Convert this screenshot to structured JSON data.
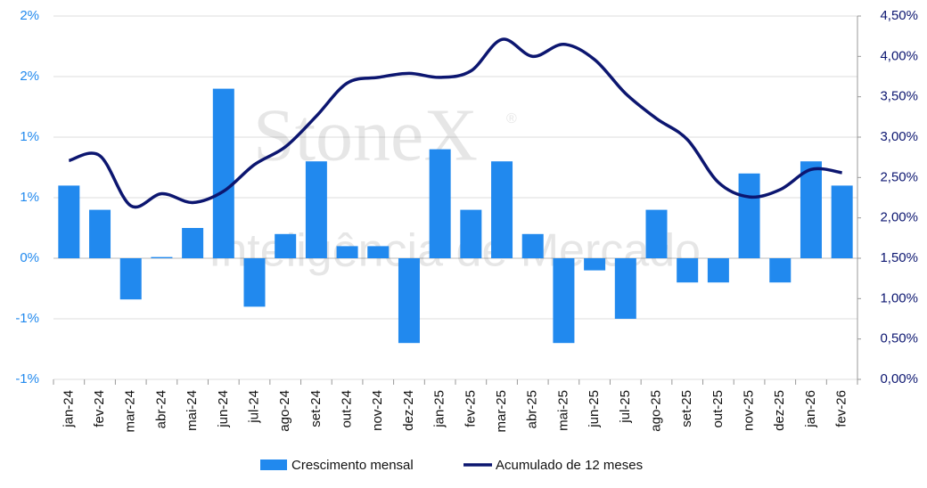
{
  "chart_data": {
    "type": "bar_line",
    "watermark": {
      "brand": "StoneX",
      "mark": "®",
      "subtitle": "Inteligência de Mercado"
    },
    "categories": [
      "jan-24",
      "fev-24",
      "mar-24",
      "abr-24",
      "mai-24",
      "jun-24",
      "jul-24",
      "ago-24",
      "set-24",
      "out-24",
      "nov-24",
      "dez-24",
      "jan-25",
      "fev-25",
      "mar-25",
      "abr-25",
      "mai-25",
      "jun-25",
      "jul-25",
      "ago-25",
      "set-25",
      "out-25",
      "nov-25",
      "dez-25",
      "jan-26",
      "fev-26"
    ],
    "series": [
      {
        "name": "Crescimento mensal",
        "color": "#2189ee",
        "type": "bar",
        "axis": "y",
        "values": [
          0.6,
          0.4,
          -0.34,
          0.01,
          0.25,
          1.4,
          -0.4,
          0.2,
          0.8,
          0.1,
          0.1,
          -0.7,
          0.9,
          0.4,
          0.8,
          0.2,
          -0.7,
          -0.1,
          -0.5,
          0.4,
          -0.2,
          -0.2,
          0.7,
          -0.2,
          0.8,
          0.6
        ]
      },
      {
        "name": "Acumulado de 12 meses",
        "color": "#0c1670",
        "type": "line",
        "axis": "y2",
        "values": [
          2.71,
          2.77,
          2.15,
          2.3,
          2.19,
          2.33,
          2.66,
          2.88,
          3.26,
          3.67,
          3.74,
          3.79,
          3.74,
          3.82,
          4.21,
          4.0,
          4.15,
          3.96,
          3.54,
          3.23,
          2.97,
          2.44,
          2.26,
          2.35,
          2.6,
          2.56
        ]
      }
    ],
    "ylim": [
      -1.0,
      2.0
    ],
    "yticks": [
      {
        "value": -1.0,
        "label": "-1%"
      },
      {
        "value": -0.5,
        "label": "-1%"
      },
      {
        "value": 0,
        "label": "0%"
      },
      {
        "value": 0.5,
        "label": "1%"
      },
      {
        "value": 1.0,
        "label": "1%"
      },
      {
        "value": 1.5,
        "label": "2%"
      },
      {
        "value": 2.0,
        "label": "2%"
      }
    ],
    "y2lim": [
      0,
      4.5
    ],
    "y2ticks": [
      {
        "value": 0,
        "label": "0,00%"
      },
      {
        "value": 0.5,
        "label": "0,50%"
      },
      {
        "value": 1.0,
        "label": "1,00%"
      },
      {
        "value": 1.5,
        "label": "1,50%"
      },
      {
        "value": 2.0,
        "label": "2,00%"
      },
      {
        "value": 2.5,
        "label": "2,50%"
      },
      {
        "value": 3.0,
        "label": "3,00%"
      },
      {
        "value": 3.5,
        "label": "3,50%"
      },
      {
        "value": 4.0,
        "label": "4,00%"
      },
      {
        "value": 4.5,
        "label": "4,50%"
      }
    ],
    "grid": true,
    "legend": "bottom"
  }
}
